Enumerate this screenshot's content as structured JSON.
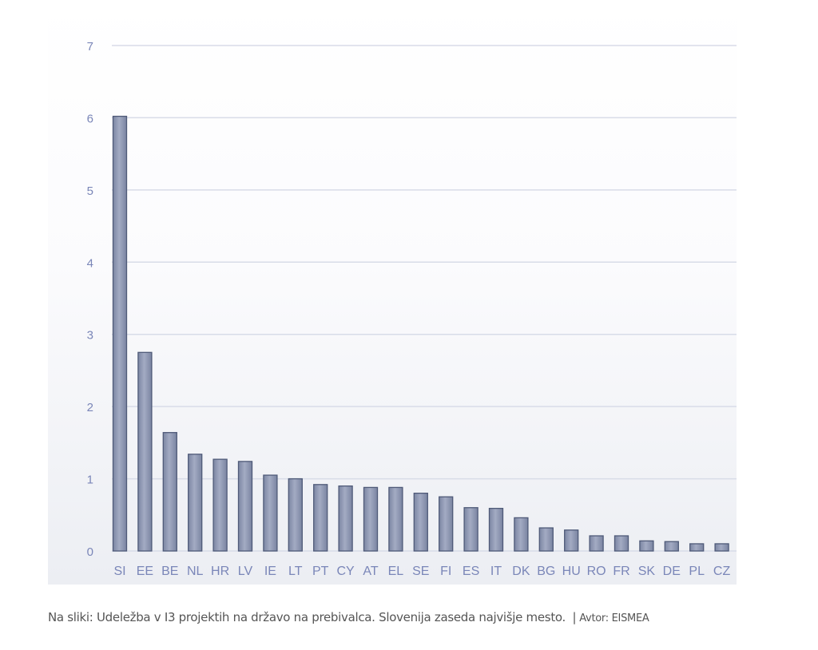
{
  "chart_data": {
    "type": "bar",
    "title": "",
    "xlabel": "",
    "ylabel": "",
    "ylim": [
      0,
      7
    ],
    "yticks": [
      "0",
      "1",
      "2",
      "3",
      "4",
      "5",
      "6",
      "7"
    ],
    "grid": true,
    "categories": [
      "SI",
      "EE",
      "BE",
      "NL",
      "HR",
      "LV",
      "IE",
      "LT",
      "PT",
      "CY",
      "AT",
      "EL",
      "SE",
      "FI",
      "ES",
      "IT",
      "DK",
      "BG",
      "HU",
      "RO",
      "FR",
      "SK",
      "DE",
      "PL",
      "CZ"
    ],
    "values": [
      6.02,
      2.75,
      1.64,
      1.34,
      1.27,
      1.24,
      1.05,
      1.0,
      0.92,
      0.9,
      0.88,
      0.88,
      0.8,
      0.75,
      0.6,
      0.59,
      0.46,
      0.32,
      0.29,
      0.21,
      0.21,
      0.14,
      0.13,
      0.1,
      0.1
    ],
    "colors": {
      "bar": "#8f99b3",
      "bar_edge": "#4f5a78",
      "grid": "#d8dce8",
      "tick": "#7a86b8"
    }
  },
  "caption": {
    "text": "Na sliki: Udeležba v I3 projektih na državo na prebivalca. Slovenija zaseda najvišje mesto.",
    "separator": "|",
    "author": "Avtor: EISMEA"
  }
}
